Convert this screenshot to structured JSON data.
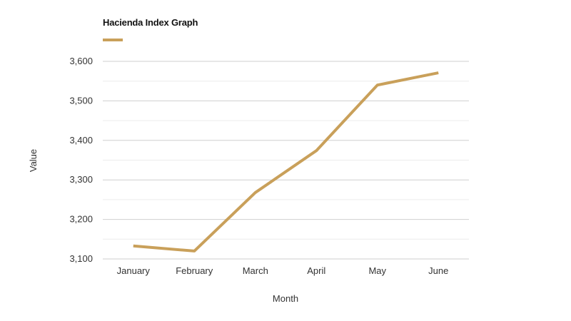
{
  "chart_data": {
    "type": "line",
    "title": "Hacienda Index Graph",
    "xlabel": "Month",
    "ylabel": "Value",
    "categories": [
      "January",
      "February",
      "March",
      "April",
      "May",
      "June"
    ],
    "series": [
      {
        "values": [
          3133,
          3120,
          3268,
          3374,
          3540,
          3571
        ],
        "color": "#c9a05a"
      }
    ],
    "ylim": [
      3100,
      3600
    ],
    "yticks": [
      3100,
      3200,
      3300,
      3400,
      3500,
      3600
    ],
    "ytick_labels": [
      "3,100",
      "3,200",
      "3,300",
      "3,400",
      "3,500",
      "3,600"
    ],
    "grid": true,
    "legend": "top-left"
  }
}
